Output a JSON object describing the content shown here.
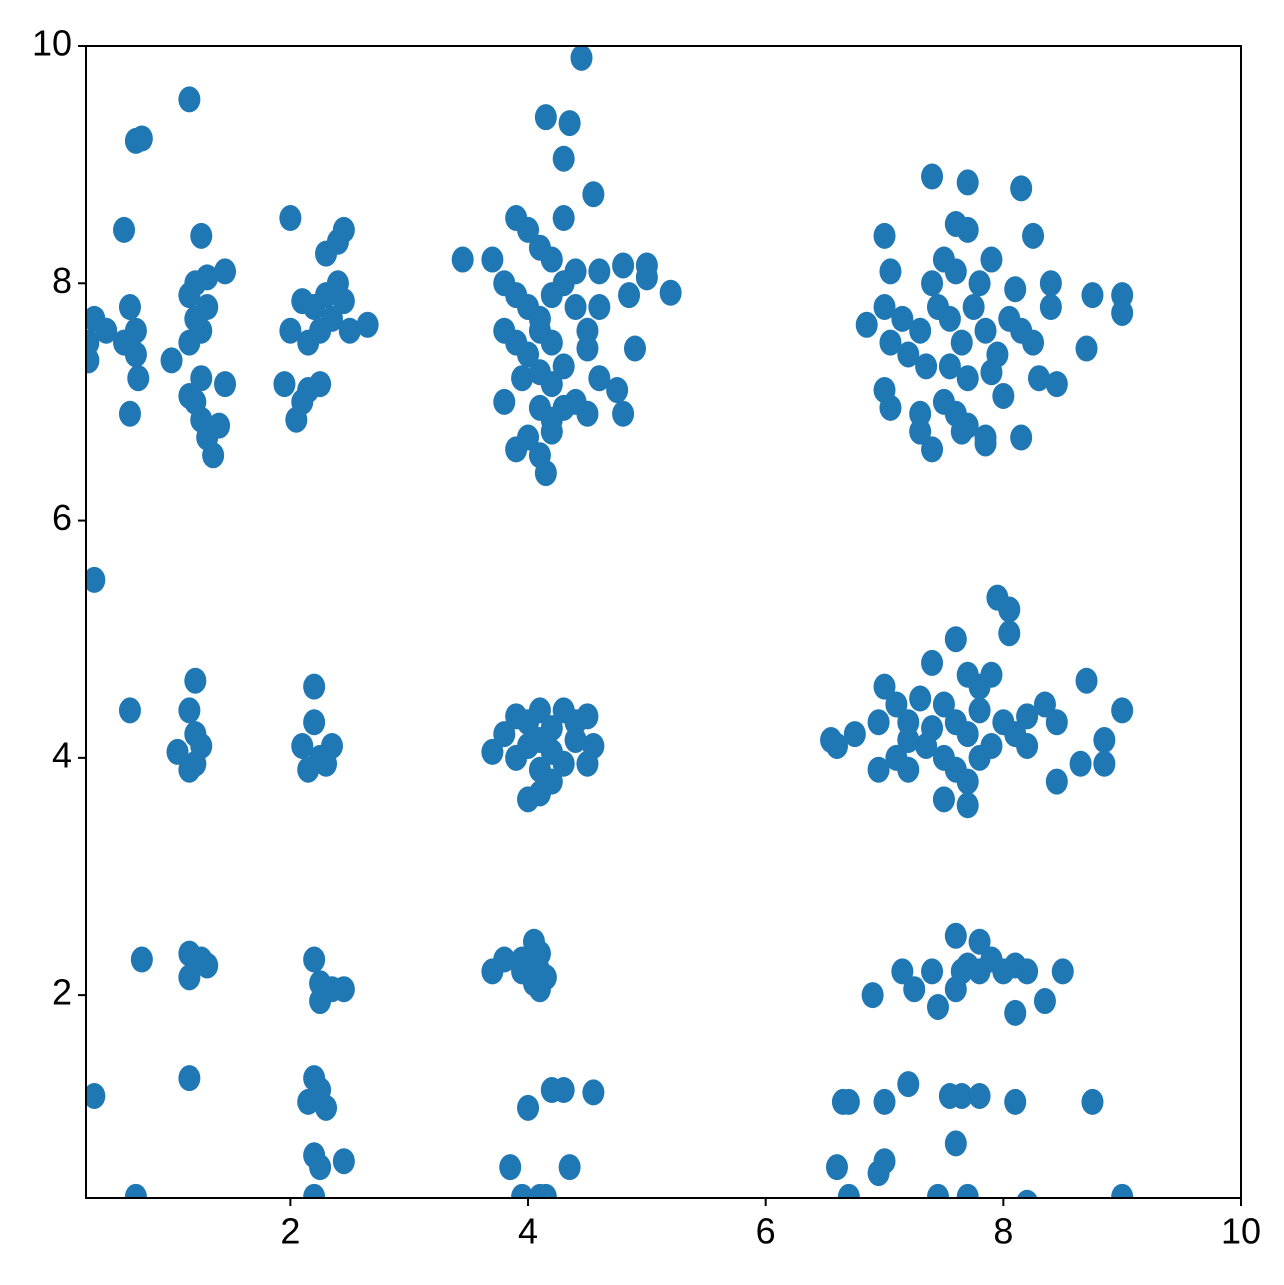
{
  "chart_data": {
    "type": "scatter",
    "color": "#1f77b4",
    "xlim": [
      0.28,
      10
    ],
    "ylim": [
      0.29,
      10
    ],
    "xticks": [
      2,
      4,
      6,
      8,
      10
    ],
    "yticks": [
      2,
      4,
      6,
      8,
      10
    ],
    "grid": false,
    "x": [
      0.35,
      0.3,
      0.3,
      0.45,
      0.6,
      0.65,
      0.7,
      0.7,
      0.72,
      0.65,
      0.6,
      0.7,
      0.75,
      0.35,
      0.65,
      0.75,
      0.35,
      0.7,
      1.15,
      1.25,
      1.45,
      1.0,
      1.15,
      1.2,
      1.25,
      1.3,
      1.2,
      1.3,
      1.15,
      1.25,
      1.2,
      1.25,
      1.3,
      1.35,
      1.4,
      1.45,
      1.15,
      1.05,
      1.15,
      1.2,
      1.2,
      1.15,
      1.25,
      1.2,
      1.15,
      1.25,
      1.3,
      1.15,
      1.15,
      2.0,
      2.3,
      2.4,
      2.45,
      2.1,
      2.2,
      2.3,
      2.35,
      2.4,
      2.45,
      2.0,
      2.15,
      2.25,
      2.5,
      2.65,
      1.95,
      2.1,
      2.15,
      2.25,
      2.05,
      2.2,
      2.2,
      2.1,
      2.25,
      2.35,
      2.15,
      2.3,
      2.2,
      2.25,
      2.35,
      2.45,
      2.25,
      2.2,
      2.25,
      2.3,
      2.15,
      2.2,
      2.25,
      2.45,
      2.2,
      3.45,
      3.7,
      3.9,
      4.0,
      4.3,
      4.1,
      4.2,
      4.4,
      4.6,
      4.8,
      5.0,
      5.0,
      4.85,
      5.2,
      3.8,
      3.9,
      4.0,
      4.1,
      4.2,
      4.3,
      4.4,
      4.5,
      4.6,
      3.8,
      3.9,
      4.0,
      4.1,
      4.2,
      4.3,
      4.5,
      4.9,
      3.95,
      4.1,
      4.2,
      4.4,
      4.6,
      4.75,
      4.8,
      3.8,
      4.1,
      4.2,
      4.3,
      4.5,
      4.0,
      4.2,
      3.9,
      4.1,
      4.15,
      4.3,
      4.35,
      4.15,
      4.45,
      4.55,
      3.7,
      3.8,
      3.9,
      4.0,
      4.1,
      4.2,
      4.3,
      4.4,
      4.5,
      4.55,
      3.9,
      4.0,
      4.1,
      4.2,
      4.3,
      4.4,
      4.5,
      4.0,
      4.1,
      4.2,
      4.1,
      3.7,
      3.8,
      3.95,
      4.05,
      4.1,
      4.1,
      4.05,
      4.15,
      3.95,
      4.1,
      4.0,
      4.2,
      4.3,
      4.55,
      3.85,
      4.35,
      3.95,
      4.1,
      4.15,
      7.4,
      7.7,
      8.15,
      7.6,
      7.7,
      8.25,
      7.0,
      7.05,
      7.4,
      7.5,
      7.6,
      7.8,
      7.9,
      8.1,
      8.4,
      8.4,
      8.75,
      9.0,
      9.0,
      7.0,
      6.85,
      7.15,
      7.3,
      7.45,
      7.55,
      7.65,
      7.75,
      7.85,
      7.95,
      8.05,
      8.15,
      8.25,
      7.05,
      7.2,
      7.35,
      7.55,
      7.7,
      7.9,
      8.0,
      8.3,
      8.45,
      8.7,
      7.0,
      7.05,
      7.3,
      7.5,
      7.6,
      7.7,
      7.3,
      7.4,
      7.65,
      7.85,
      8.15,
      7.85,
      6.55,
      6.6,
      6.75,
      6.95,
      7.0,
      7.1,
      7.2,
      7.3,
      7.4,
      7.5,
      7.6,
      7.7,
      7.8,
      7.9,
      7.95,
      8.05,
      8.05,
      7.6,
      7.7,
      7.8,
      7.9,
      8.0,
      8.1,
      8.2,
      8.35,
      8.45,
      8.7,
      9.0,
      8.85,
      8.85,
      8.65,
      8.45,
      6.95,
      7.1,
      7.2,
      7.35,
      7.5,
      7.6,
      7.7,
      7.8,
      7.5,
      7.7,
      8.2,
      7.4,
      7.2,
      6.9,
      7.15,
      7.25,
      7.4,
      7.45,
      7.6,
      7.6,
      7.8,
      7.7,
      7.8,
      7.9,
      8.0,
      8.1,
      8.2,
      8.1,
      8.35,
      8.5,
      7.65,
      6.65,
      6.7,
      7.0,
      7.2,
      7.55,
      7.65,
      7.8,
      8.1,
      8.75,
      6.6,
      6.95,
      7.0,
      7.6,
      6.7,
      7.45,
      7.7,
      8.2,
      9.0
    ],
    "values": [
      7.7,
      7.5,
      7.35,
      7.6,
      7.5,
      7.8,
      7.6,
      7.4,
      7.2,
      6.9,
      8.45,
      9.2,
      9.22,
      5.5,
      4.4,
      2.3,
      1.15,
      0.3,
      9.55,
      8.4,
      8.1,
      7.35,
      7.9,
      7.7,
      7.6,
      7.8,
      8.0,
      8.05,
      7.5,
      7.2,
      7.0,
      6.85,
      6.7,
      6.55,
      6.8,
      7.15,
      7.05,
      4.05,
      4.4,
      4.2,
      4.65,
      3.9,
      4.1,
      3.95,
      2.35,
      2.3,
      2.25,
      2.15,
      1.3,
      8.55,
      8.25,
      8.35,
      8.45,
      7.85,
      7.8,
      7.9,
      7.7,
      8.0,
      7.85,
      7.6,
      7.5,
      7.6,
      7.6,
      7.65,
      7.15,
      7.0,
      7.1,
      7.15,
      6.85,
      4.6,
      4.3,
      4.1,
      4.0,
      4.1,
      3.9,
      3.95,
      2.3,
      2.1,
      2.05,
      2.05,
      1.95,
      1.3,
      1.2,
      1.05,
      1.1,
      0.65,
      0.55,
      0.6,
      0.3,
      8.2,
      8.2,
      8.55,
      8.45,
      8.55,
      8.3,
      8.2,
      8.1,
      8.1,
      8.15,
      8.15,
      8.05,
      7.9,
      7.92,
      8.0,
      7.9,
      7.8,
      7.7,
      7.9,
      8.0,
      7.8,
      7.6,
      7.8,
      7.6,
      7.5,
      7.4,
      7.6,
      7.5,
      7.3,
      7.45,
      7.45,
      7.2,
      7.25,
      7.15,
      7.0,
      7.2,
      7.1,
      6.9,
      7.0,
      6.95,
      6.85,
      6.95,
      6.9,
      6.7,
      6.75,
      6.6,
      6.55,
      6.4,
      9.05,
      9.35,
      9.4,
      9.9,
      8.75,
      4.05,
      4.2,
      4.35,
      4.3,
      4.4,
      4.25,
      4.4,
      4.3,
      4.35,
      4.1,
      4.0,
      4.1,
      3.9,
      4.05,
      3.95,
      4.15,
      3.95,
      3.65,
      3.7,
      3.8,
      4.15,
      2.2,
      2.3,
      2.3,
      2.45,
      2.35,
      2.2,
      2.1,
      2.15,
      2.2,
      2.05,
      1.05,
      1.2,
      1.2,
      1.18,
      0.55,
      0.55,
      0.3,
      0.3,
      0.3,
      8.9,
      8.85,
      8.8,
      8.5,
      8.45,
      8.4,
      8.4,
      8.1,
      8.0,
      8.2,
      8.1,
      8.0,
      8.2,
      7.95,
      8.0,
      7.8,
      7.9,
      7.9,
      7.75,
      7.8,
      7.65,
      7.7,
      7.6,
      7.8,
      7.7,
      7.5,
      7.8,
      7.6,
      7.4,
      7.7,
      7.6,
      7.5,
      7.5,
      7.4,
      7.3,
      7.3,
      7.2,
      7.25,
      7.05,
      7.2,
      7.15,
      7.45,
      7.1,
      6.95,
      6.9,
      7.0,
      6.9,
      6.8,
      6.75,
      6.6,
      6.75,
      6.7,
      6.7,
      6.65,
      4.15,
      4.1,
      4.2,
      4.3,
      4.6,
      4.45,
      4.3,
      4.5,
      4.8,
      4.45,
      5.0,
      4.7,
      4.6,
      4.7,
      5.35,
      5.25,
      5.05,
      4.3,
      4.2,
      4.4,
      4.1,
      4.3,
      4.2,
      4.35,
      4.45,
      4.3,
      4.65,
      4.4,
      4.15,
      3.95,
      3.95,
      3.8,
      3.9,
      4.0,
      3.9,
      4.1,
      4.0,
      3.9,
      3.8,
      4.0,
      3.65,
      3.6,
      4.1,
      4.25,
      4.15,
      2.0,
      2.2,
      2.05,
      2.2,
      1.9,
      2.05,
      2.5,
      2.45,
      2.25,
      2.2,
      2.3,
      2.2,
      2.25,
      2.2,
      1.85,
      1.95,
      2.2,
      2.2,
      1.1,
      1.1,
      1.1,
      1.25,
      1.15,
      1.15,
      1.15,
      1.1,
      1.1,
      0.55,
      0.5,
      0.6,
      0.75,
      0.3,
      0.3,
      0.3,
      0.25,
      0.3
    ]
  }
}
